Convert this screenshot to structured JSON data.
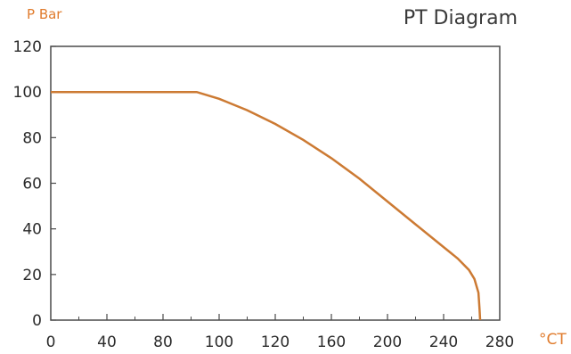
{
  "chart_data": {
    "type": "line",
    "title": "PT Diagram",
    "xlabel": "°CT",
    "ylabel": "P Bar",
    "x_tick_labels": [
      "0",
      "40",
      "80",
      "100",
      "120",
      "160",
      "200",
      "240",
      "280"
    ],
    "y_ticks": [
      0,
      20,
      40,
      60,
      80,
      100,
      120
    ],
    "ylim": [
      0,
      120
    ],
    "grid": false,
    "series": [
      {
        "points": [
          [
            0,
            100
          ],
          [
            1,
            100
          ],
          [
            2,
            100
          ],
          [
            2.6,
            100
          ],
          [
            3.0,
            97
          ],
          [
            3.5,
            92
          ],
          [
            4.0,
            86
          ],
          [
            4.5,
            79
          ],
          [
            5.0,
            71
          ],
          [
            5.5,
            62
          ],
          [
            6.0,
            52
          ],
          [
            6.5,
            42
          ],
          [
            7.0,
            32
          ],
          [
            7.25,
            27
          ],
          [
            7.45,
            22
          ],
          [
            7.55,
            18
          ],
          [
            7.62,
            12
          ],
          [
            7.64,
            5
          ],
          [
            7.65,
            0
          ]
        ],
        "color": "#cc7a33"
      }
    ]
  }
}
